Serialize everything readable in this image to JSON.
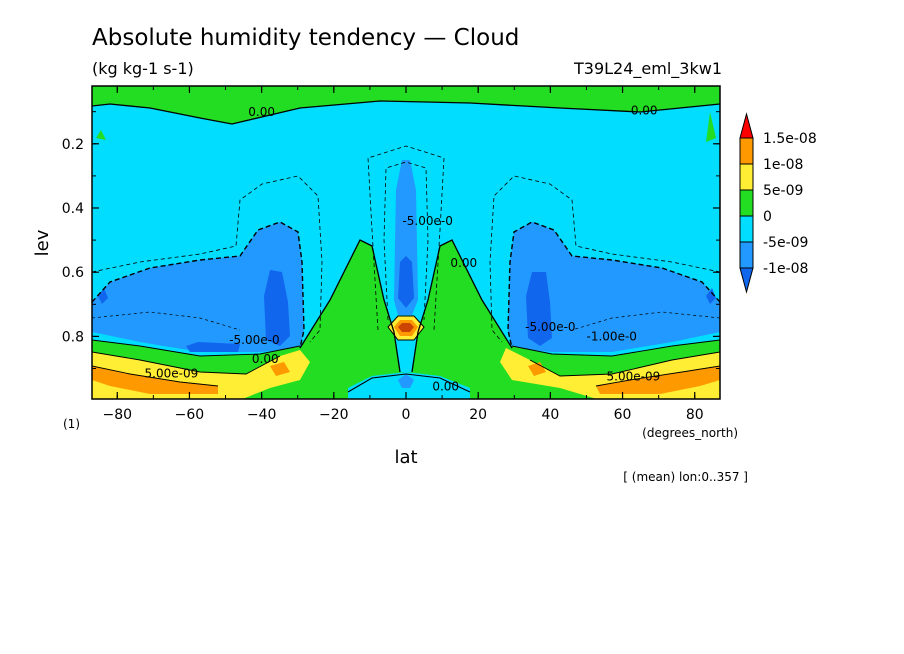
{
  "chart_data": {
    "type": "contour",
    "title": "Absolute humidity tendency — Cloud",
    "units": "(kg kg-1 s-1)",
    "experiment": "T39L24_eml_3kw1",
    "xlabel": "lat",
    "xunits": "(degrees_north)",
    "ylabel": "lev",
    "yunits": "(1)",
    "annotation": "[ (mean) lon:0..357 ]",
    "xlim": [
      -87,
      87
    ],
    "ylim": [
      0.995,
      0.02
    ],
    "x_ticks": [
      -80,
      -60,
      -40,
      -20,
      0,
      20,
      40,
      60,
      80
    ],
    "x_tick_labels": [
      "−80",
      "−60",
      "−40",
      "−20",
      "0",
      "20",
      "40",
      "60",
      "80"
    ],
    "y_ticks": [
      0.2,
      0.4,
      0.6,
      0.8
    ],
    "y_tick_labels": [
      "0.2",
      "0.4",
      "0.6",
      "0.8"
    ],
    "colorbar": {
      "levels": [
        "1.5e-08",
        "1e-08",
        "5e-09",
        "0",
        "-5e-09",
        "-1e-08"
      ],
      "colors": [
        "#ff0000",
        "#ff9900",
        "#ffee33",
        "#22dd22",
        "#00ddff",
        "#2299ff",
        "#1166ee"
      ]
    },
    "contour_labels": [
      {
        "text": "0.00",
        "lat": -40,
        "lev": 0.11
      },
      {
        "text": "0.00",
        "lat": 66,
        "lev": 0.105
      },
      {
        "text": "-5.00e-0",
        "lat": 6,
        "lev": 0.45
      },
      {
        "text": "0.00",
        "lat": 16,
        "lev": 0.58
      },
      {
        "text": "-5.00e-0",
        "lat": 40,
        "lev": 0.78
      },
      {
        "text": "-1.00e-0",
        "lat": 57,
        "lev": 0.81
      },
      {
        "text": "-5.00e-0",
        "lat": -42,
        "lev": 0.82
      },
      {
        "text": "0.00",
        "lat": -39,
        "lev": 0.88
      },
      {
        "text": "5.00e-09",
        "lat": -65,
        "lev": 0.925
      },
      {
        "text": "5.00e-09",
        "lat": 63,
        "lev": 0.935
      },
      {
        "text": "0.00",
        "lat": 11,
        "lev": 0.965
      }
    ]
  }
}
